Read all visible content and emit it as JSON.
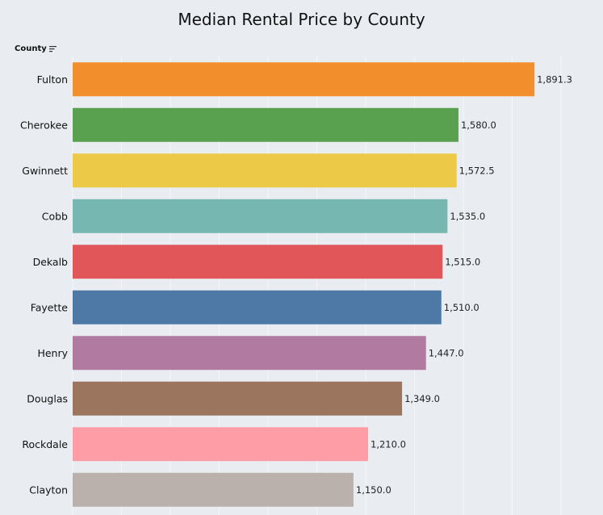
{
  "chart_data": {
    "type": "bar",
    "orientation": "horizontal",
    "title": "Median Rental Price by County",
    "row_header": "County",
    "categories": [
      "Fulton",
      "Cherokee",
      "Gwinnett",
      "Cobb",
      "Dekalb",
      "Fayette",
      "Henry",
      "Douglas",
      "Rockdale",
      "Clayton"
    ],
    "values": [
      1891.3,
      1580.0,
      1572.5,
      1535.0,
      1515.0,
      1510.0,
      1447.0,
      1349.0,
      1210.0,
      1150.0
    ],
    "value_labels": [
      "1,891.3",
      "1,580.0",
      "1,572.5",
      "1,535.0",
      "1,515.0",
      "1,510.0",
      "1,447.0",
      "1,349.0",
      "1,210.0",
      "1,150.0"
    ],
    "colors": [
      "#f28e2b",
      "#59a14f",
      "#edc948",
      "#76b7b2",
      "#e15759",
      "#4e79a7",
      "#b07aa1",
      "#9c755f",
      "#ff9da7",
      "#bab0ac"
    ],
    "xlim": [
      0,
      2000
    ],
    "grid": true,
    "sorted": "descending"
  },
  "icons": {
    "sort": "sort-descending-icon"
  }
}
